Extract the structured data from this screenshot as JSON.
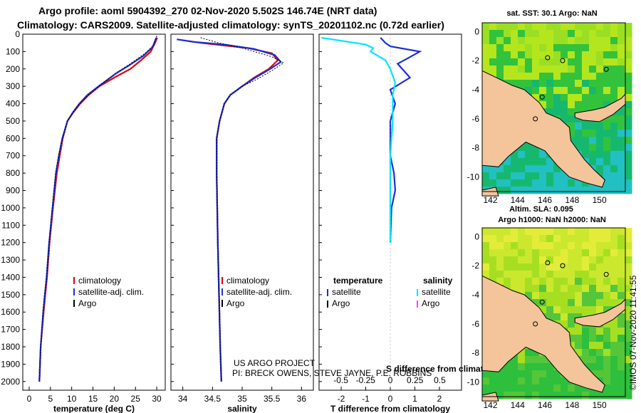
{
  "header": {
    "title_line1": "Argo profile: aoml 5904392_270 02-Nov-2020 5.502S 146.74E (NRT data)",
    "title_line2": "Climatology: CARS2009. Satellite-adjusted climatology: synTS_20201102.nc (0.72d earlier)"
  },
  "colors": {
    "climatology": "#e00000",
    "satellite": "#1a2ed6",
    "argo": "#000000",
    "sal_satellite": "#00e5ff",
    "sal_argo": "#ff40ff",
    "land": "#f4c49a"
  },
  "credits": {
    "line1": "US ARGO PROJECT",
    "line2": "PI: BRECK OWENS, STEVE JAYNE, P.E. ROBBINS"
  },
  "imos_stamp": "©IMOS 07-Nov-2020 11:41:55",
  "chart_data": [
    {
      "type": "line",
      "name": "temperature-profile",
      "xlabel": "temperature (deg C)",
      "ylabel": "",
      "xlim": [
        -1.5,
        32
      ],
      "ylim": [
        2050,
        0
      ],
      "xticks": [
        0,
        5,
        10,
        15,
        20,
        25,
        30
      ],
      "yticks": [
        0,
        100,
        200,
        300,
        400,
        500,
        600,
        700,
        800,
        900,
        1000,
        1100,
        1200,
        1300,
        1400,
        1500,
        1600,
        1700,
        1800,
        1900,
        2000
      ],
      "legend": [
        "climatology",
        "satellite-adj. clim.",
        "Argo"
      ],
      "series": [
        {
          "name": "climatology",
          "color": "#e00000",
          "x": [
            30.1,
            29.6,
            28.6,
            26.3,
            23.8,
            20.0,
            16.5,
            14.0,
            12.0,
            10.4,
            9.0,
            7.9,
            7.2,
            6.5,
            5.6,
            4.8,
            4.2,
            3.8,
            3.4,
            2.7,
            2.4
          ],
          "y": [
            20,
            50,
            100,
            150,
            200,
            250,
            300,
            350,
            400,
            450,
            500,
            600,
            700,
            800,
            1000,
            1200,
            1400,
            1500,
            1600,
            1800,
            2000
          ]
        },
        {
          "name": "satellite-adj. clim.",
          "color": "#1a2ed6",
          "x": [
            29.9,
            29.0,
            26.8,
            23.8,
            20.5,
            16.3,
            13.7,
            11.8,
            10.3,
            9.0,
            7.8,
            7.0,
            6.3,
            5.5,
            4.7,
            4.1,
            3.7,
            3.3,
            2.7,
            2.4
          ],
          "y": [
            20,
            75,
            125,
            175,
            225,
            300,
            350,
            400,
            450,
            500,
            600,
            700,
            800,
            1000,
            1200,
            1400,
            1500,
            1600,
            1800,
            2000
          ]
        },
        {
          "name": "Argo",
          "color": "#000000",
          "x": [
            30.0,
            29.4,
            27.3,
            23.5,
            20.3,
            16.4,
            13.9,
            11.9,
            10.3,
            9.0,
            7.8,
            6.9,
            6.2,
            5.4,
            4.7,
            4.1,
            3.6,
            3.2,
            2.7,
            2.4
          ],
          "y": [
            10,
            60,
            110,
            175,
            225,
            300,
            350,
            400,
            450,
            500,
            600,
            700,
            800,
            1000,
            1200,
            1400,
            1500,
            1600,
            1800,
            2000
          ]
        }
      ]
    },
    {
      "type": "line",
      "name": "salinity-profile",
      "xlabel": "salinity",
      "ylabel": "",
      "xlim": [
        33.8,
        36.2
      ],
      "ylim": [
        2050,
        0
      ],
      "xticks": [
        34,
        34.5,
        35,
        35.5,
        36
      ],
      "legend": [
        "climatology",
        "satellite-adj. clim.",
        "Argo"
      ],
      "series": [
        {
          "name": "climatology",
          "color": "#e00000",
          "x": [
            34.1,
            34.3,
            34.7,
            35.1,
            35.5,
            35.6,
            35.45,
            35.2,
            35.0,
            34.8,
            34.7,
            34.62,
            34.57,
            34.57,
            34.58,
            34.59,
            34.61,
            34.63,
            34.65
          ],
          "y": [
            40,
            50,
            65,
            80,
            110,
            150,
            200,
            250,
            300,
            350,
            400,
            500,
            600,
            800,
            1000,
            1200,
            1500,
            1800,
            2000
          ]
        },
        {
          "name": "satellite-adj. clim.",
          "color": "#1a2ed6",
          "x": [
            33.9,
            34.2,
            34.7,
            35.2,
            35.55,
            35.65,
            35.45,
            35.2,
            35.0,
            34.8,
            34.7,
            34.62,
            34.57,
            34.57,
            34.58,
            34.59,
            34.61,
            34.63,
            34.65
          ],
          "y": [
            30,
            45,
            60,
            85,
            120,
            160,
            205,
            255,
            300,
            350,
            400,
            500,
            600,
            800,
            1000,
            1200,
            1500,
            1800,
            2000
          ]
        },
        {
          "name": "Argo",
          "color": "#000000",
          "x": [
            34.3,
            34.6,
            35.0,
            35.5,
            35.7,
            35.5,
            35.25,
            35.0,
            34.8,
            34.7,
            34.62,
            34.57,
            34.57,
            34.58,
            34.59,
            34.61,
            34.63,
            34.65
          ],
          "y": [
            20,
            50,
            80,
            130,
            165,
            210,
            260,
            300,
            350,
            400,
            500,
            600,
            800,
            1000,
            1200,
            1500,
            1800,
            2000
          ]
        }
      ]
    },
    {
      "type": "line",
      "name": "difference-profile",
      "xlabel": "T difference from climatology",
      "ylabel": "",
      "top_xlabel": "S difference from climatology",
      "xlim": [
        -2.9,
        2.9
      ],
      "ylim": [
        2050,
        0
      ],
      "xticks": [
        -2,
        -1,
        0,
        1,
        2
      ],
      "top_xticks": [
        -0.5,
        -0.25,
        0,
        0.25,
        0.5
      ],
      "legend_t_title": "temperature",
      "legend_s_title": "salinity",
      "legend": [
        "satellite",
        "Argo",
        "satellite",
        "Argo"
      ],
      "series": [
        {
          "name": "T satellite",
          "color": "#1a2ed6",
          "x": [
            -0.4,
            -0.2,
            0.0,
            1.2,
            0.7,
            0.3,
            0.8,
            0.0,
            0.2,
            0.0,
            0.0,
            0.15,
            0.2,
            0.05,
            0.0
          ],
          "y": [
            20,
            50,
            70,
            100,
            140,
            170,
            250,
            320,
            400,
            500,
            700,
            800,
            900,
            1000,
            1200
          ]
        },
        {
          "name": "S satellite",
          "color": "#00e5ff",
          "x": [
            -2.8,
            -1.0,
            -0.7,
            -0.8,
            -0.2,
            0.0,
            0.2,
            0.1,
            0.1,
            0.0,
            0.0,
            0.0
          ],
          "y": [
            20,
            60,
            80,
            100,
            150,
            200,
            280,
            350,
            500,
            700,
            900,
            1200
          ]
        }
      ]
    }
  ],
  "maps": [
    {
      "title_line1": "sat. SST: 30.1 Argo: NaN",
      "title_line2": "",
      "xticks": [
        142,
        144,
        146,
        148,
        150
      ],
      "yticks": [
        0,
        -2,
        -4,
        -6,
        -8,
        -10
      ]
    },
    {
      "title_line1": "Altim. SLA: 0.095",
      "title_line2": "Argo h1000: NaN h2000: NaN",
      "xticks": [
        142,
        144,
        146,
        148,
        150
      ],
      "yticks": [
        0,
        -2,
        -4,
        -6,
        -8,
        -10
      ]
    }
  ]
}
